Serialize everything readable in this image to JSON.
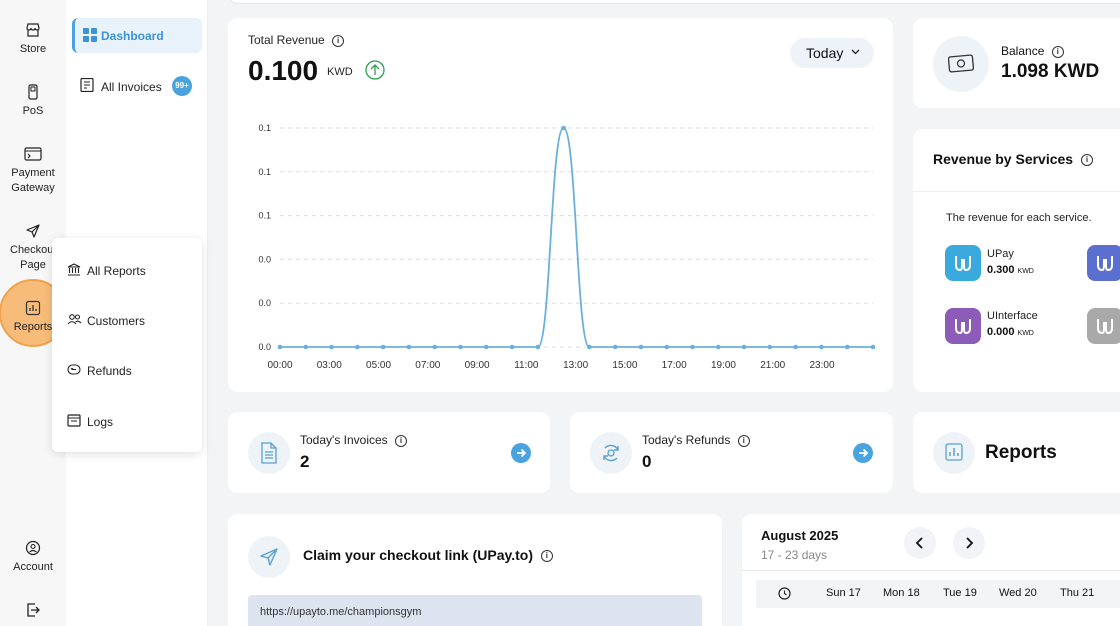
{
  "rail": {
    "items": [
      {
        "label": "Store"
      },
      {
        "label": "PoS"
      },
      {
        "label": "Payment Gateway"
      },
      {
        "label": "Checkout Page"
      },
      {
        "label": "Reports"
      },
      {
        "label": "Account"
      }
    ]
  },
  "sidebar": {
    "active_label": "Dashboard",
    "invoices_label": "All Invoices",
    "invoices_badge": "99+"
  },
  "reports_menu": {
    "items": [
      {
        "label": "All Reports"
      },
      {
        "label": "Customers"
      },
      {
        "label": "Refunds"
      },
      {
        "label": "Logs"
      }
    ]
  },
  "revenue": {
    "title": "Total Revenue",
    "amount": "0.100",
    "unit": "KWD",
    "period": "Today"
  },
  "chart_data": {
    "type": "line",
    "x": [
      "00:00",
      "01:00",
      "02:00",
      "03:00",
      "04:00",
      "05:00",
      "06:00",
      "07:00",
      "08:00",
      "09:00",
      "10:00",
      "11:00",
      "12:00",
      "13:00",
      "14:00",
      "15:00",
      "16:00",
      "17:00",
      "18:00",
      "19:00",
      "20:00",
      "21:00",
      "22:00",
      "23:00"
    ],
    "values": [
      0,
      0,
      0,
      0,
      0,
      0,
      0,
      0,
      0,
      0,
      0,
      0.1,
      0,
      0,
      0,
      0,
      0,
      0,
      0,
      0,
      0,
      0,
      0,
      0
    ],
    "x_tick_labels": [
      "00:00",
      "03:00",
      "05:00",
      "07:00",
      "09:00",
      "11:00",
      "13:00",
      "15:00",
      "17:00",
      "19:00",
      "21:00",
      "23:00"
    ],
    "y_tick_labels": [
      "0.0",
      "0.0",
      "0.0",
      "0.1",
      "0.1",
      "0.1"
    ],
    "ylim": [
      0,
      0.1
    ],
    "grid": true,
    "color": "#6ab0dc"
  },
  "balance": {
    "label": "Balance",
    "value": "1.098 KWD"
  },
  "services": {
    "title": "Revenue by Services",
    "subtitle": "The revenue for each service.",
    "items": [
      {
        "name": "UPay",
        "value": "0.300",
        "unit": "KWD",
        "color": "#3aa9dd"
      },
      {
        "name": "UInterface",
        "value": "0.000",
        "unit": "KWD",
        "color": "#8d5bb8"
      }
    ],
    "partial_colors": [
      "#5b6fd0",
      "#a9a9a9"
    ]
  },
  "stats": {
    "invoices_label": "Today's Invoices",
    "invoices_value": "2",
    "refunds_label": "Today's Refunds",
    "refunds_value": "0"
  },
  "reports_card": {
    "title": "Reports"
  },
  "claim": {
    "title": "Claim your checkout link (UPay.to)",
    "link": "https://upayto.me/championsgym"
  },
  "calendar": {
    "month": "August 2025",
    "range": "17 - 23 days",
    "days": [
      "Sun 17",
      "Mon 18",
      "Tue 19",
      "Wed 20",
      "Thu 21"
    ]
  }
}
